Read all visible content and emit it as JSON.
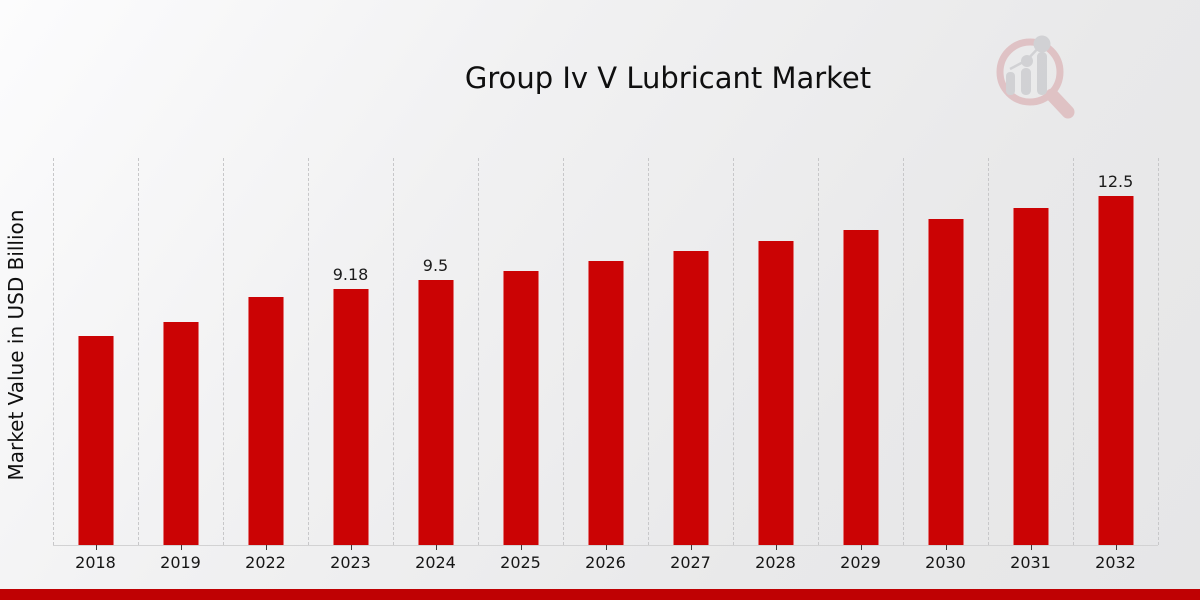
{
  "page": {
    "title": "Group Iv V Lubricant Market"
  },
  "logo": {
    "icon": "magnifier-bar-chart-icon",
    "ring_color": "#cf8488",
    "bars_color": "#a9abb0",
    "opacity": 0.38
  },
  "footer": {
    "accent_color": "#bf0103"
  },
  "chart_data": {
    "type": "bar",
    "title": "Group Iv V Lubricant Market",
    "xlabel": "",
    "ylabel": "Market Value in USD Billion",
    "unit": "USD Billion",
    "categories": [
      "2018",
      "2019",
      "2022",
      "2023",
      "2024",
      "2025",
      "2026",
      "2027",
      "2028",
      "2029",
      "2030",
      "2031",
      "2032"
    ],
    "values": [
      7.5,
      8.0,
      8.9,
      9.18,
      9.5,
      9.83,
      10.17,
      10.53,
      10.9,
      11.28,
      11.67,
      12.08,
      12.5
    ],
    "data_labels": {
      "2023": "9.18",
      "2024": "9.5",
      "2032": "12.5"
    },
    "bar_color": "#cb0304",
    "ylim": [
      0,
      13.87
    ],
    "grid": "vertical-dashed",
    "legend": "none"
  }
}
